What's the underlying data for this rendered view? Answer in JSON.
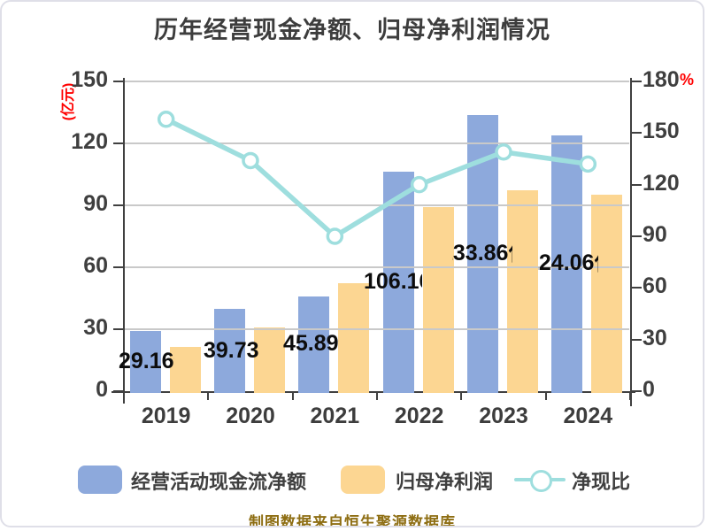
{
  "title": "历年经营现金净额、归母净利润情况",
  "axes": {
    "left_unit": "(亿元)",
    "right_unit": "%",
    "left_ticks": [
      0,
      30,
      60,
      90,
      120,
      150
    ],
    "right_ticks": [
      0,
      30,
      60,
      90,
      120,
      150,
      180
    ]
  },
  "categories": [
    "2019",
    "2020",
    "2021",
    "2022",
    "2023",
    "2024"
  ],
  "bar_labels": [
    "29.16亿",
    "39.73亿",
    "45.89亿",
    "106.16亿",
    "133.86亿",
    "124.06亿"
  ],
  "legend": {
    "items": [
      {
        "label": "经营活动现金流净额",
        "type": "bar",
        "color": "#8da9dc"
      },
      {
        "label": "归母净利润",
        "type": "bar",
        "color": "#fcd692"
      },
      {
        "label": "净现比",
        "type": "line",
        "color": "#9edede"
      }
    ]
  },
  "caption": "制图数据来自恒生聚源数据库",
  "colors": {
    "bar_cash": "#8da9dc",
    "bar_profit": "#fcd692",
    "ratio_line": "#9edede",
    "grid": "#c9c9c9",
    "axis": "#404040",
    "title_text": "#3d3d3d",
    "value_label": "#0d0d0d",
    "unit_red": "#ff0000",
    "caption_gold": "#8e6e13"
  },
  "chart_data": {
    "type": "bar",
    "title": "历年经营现金净额、归母净利润情况",
    "categories": [
      "2019",
      "2020",
      "2021",
      "2022",
      "2023",
      "2024"
    ],
    "series": [
      {
        "name": "经营活动现金流净额",
        "type": "bar",
        "axis": "left",
        "values": [
          29.16,
          39.73,
          45.89,
          106.16,
          133.86,
          124.06
        ]
      },
      {
        "name": "归母净利润",
        "type": "bar",
        "axis": "left",
        "values": [
          21.4,
          30.9,
          52.3,
          89.1,
          97.3,
          95.1
        ]
      },
      {
        "name": "净现比",
        "type": "line",
        "axis": "right",
        "values": [
          158,
          134,
          90,
          120,
          139,
          132
        ]
      }
    ],
    "left_axis": {
      "label": "(亿元)",
      "range": [
        0,
        150
      ],
      "ticks": [
        0,
        30,
        60,
        90,
        120,
        150
      ]
    },
    "right_axis": {
      "label": "%",
      "range": [
        0,
        180
      ],
      "ticks": [
        0,
        30,
        60,
        90,
        120,
        150,
        180
      ]
    },
    "grid": true,
    "legend_position": "bottom"
  }
}
